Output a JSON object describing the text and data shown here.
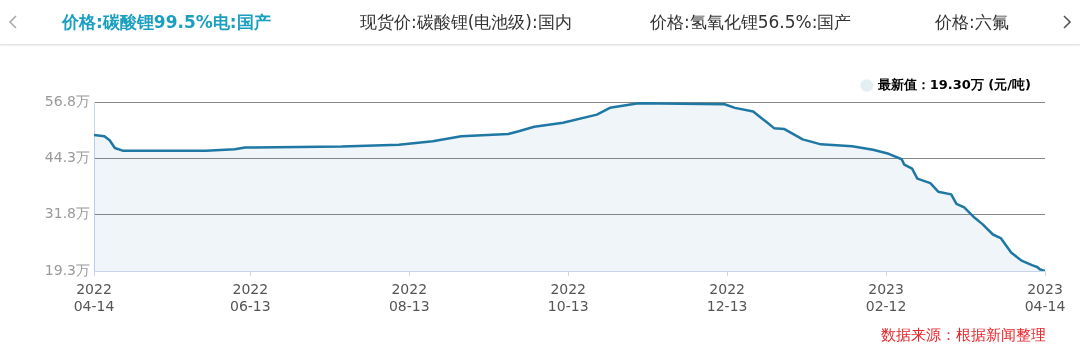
{
  "chart_data": {
    "type": "area",
    "title": "价格:碳酸锂99.5%电:国产",
    "annotations": [
      "现货价:碳酸锂(电池级):国内",
      "价格:氢氧化锂56.5%:国产",
      "价格:六氟",
      "数据来源：根据新闻整理"
    ],
    "x": [
      "2022-04-14",
      "2022-04-18",
      "2022-04-20",
      "2022-04-22",
      "2022-04-25",
      "2022-05-27",
      "2022-06-07",
      "2022-06-11",
      "2022-07-18",
      "2022-08-09",
      "2022-08-22",
      "2022-09-02",
      "2022-09-20",
      "2022-09-24",
      "2022-09-30",
      "2022-10-11",
      "2022-10-24",
      "2022-10-29",
      "2022-11-09",
      "2022-12-12",
      "2022-12-16",
      "2022-12-23",
      "2022-12-28",
      "2022-12-31",
      "2023-01-04",
      "2023-01-11",
      "2023-01-18",
      "2023-01-30",
      "2023-02-07",
      "2023-02-13",
      "2023-02-18",
      "2023-02-19",
      "2023-02-22",
      "2023-02-24",
      "2023-03-01",
      "2023-03-04",
      "2023-03-09",
      "2023-03-11",
      "2023-03-14",
      "2023-03-18",
      "2023-03-21",
      "2023-03-25",
      "2023-03-28",
      "2023-04-01",
      "2023-04-05",
      "2023-04-09",
      "2023-04-11",
      "2023-04-12",
      "2023-04-14"
    ],
    "series": [
      {
        "name": "最新值：19.30万 (元/吨)",
        "color": "#1f78a4",
        "values": [
          49.5,
          49.2,
          48.3,
          46.6,
          46.0,
          46.0,
          46.3,
          46.7,
          46.9,
          47.3,
          48.1,
          49.2,
          49.7,
          50.3,
          51.3,
          52.2,
          54.0,
          55.5,
          56.5,
          56.3,
          55.5,
          54.7,
          52.4,
          51.0,
          50.8,
          48.5,
          47.4,
          47.0,
          46.2,
          45.3,
          44.1,
          42.9,
          42.0,
          39.8,
          38.8,
          36.9,
          36.3,
          34.2,
          33.4,
          31.1,
          29.7,
          27.4,
          26.6,
          23.4,
          21.6,
          20.6,
          20.2,
          19.7,
          19.3
        ]
      }
    ],
    "xlim": [
      "2022-04-14",
      "2023-04-14"
    ],
    "xticks": [
      {
        "value": "2022-04-14",
        "label": "2022\n04-14"
      },
      {
        "value": "2022-06-13",
        "label": "2022\n06-13"
      },
      {
        "value": "2022-08-13",
        "label": "2022\n08-13"
      },
      {
        "value": "2022-10-13",
        "label": "2022\n10-13"
      },
      {
        "value": "2022-12-13",
        "label": "2022\n12-13"
      },
      {
        "value": "2023-02-12",
        "label": "2023\n02-12"
      },
      {
        "value": "2023-04-14",
        "label": "2023\n04-14"
      }
    ],
    "ylim": [
      19.3,
      56.8
    ],
    "yticks": [
      {
        "value": 19.3,
        "label": "19.3万"
      },
      {
        "value": 31.8,
        "label": "31.8万"
      },
      {
        "value": 44.3,
        "label": "44.3万"
      },
      {
        "value": 56.8,
        "label": "56.8万"
      }
    ],
    "grid": "y",
    "legend": "top right",
    "marker": "none",
    "line_style": "solid"
  }
}
